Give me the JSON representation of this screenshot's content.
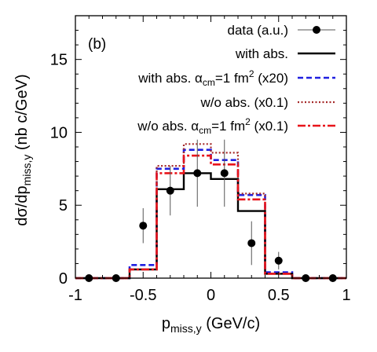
{
  "chart_data": {
    "type": "line",
    "panel_label": "(b)",
    "xlabel_main": "p",
    "xlabel_sub": "miss,y",
    "xlabel_unit": "(GeV/c)",
    "ylabel_main": "dσ/dp",
    "ylabel_sub": "miss,y",
    "ylabel_unit": "(nb c/GeV)",
    "xlim": [
      -1,
      1
    ],
    "ylim": [
      0,
      18
    ],
    "xticks": [
      -1,
      -0.5,
      0,
      0.5,
      1
    ],
    "xtick_labels": [
      "-1",
      "-0.5",
      "0",
      "0.5",
      "1"
    ],
    "yticks": [
      0,
      5,
      10,
      15
    ],
    "ytick_labels": [
      "0",
      "5",
      "10",
      "15"
    ],
    "bin_edges": [
      -1.0,
      -0.8,
      -0.6,
      -0.4,
      -0.2,
      0.0,
      0.2,
      0.4,
      0.6,
      0.8,
      1.0
    ],
    "data": {
      "label": "data (a.u.)",
      "x": [
        -0.9,
        -0.7,
        -0.5,
        -0.3,
        -0.1,
        0.1,
        0.3,
        0.5,
        0.7,
        0.9
      ],
      "y": [
        0,
        0,
        3.6,
        6.0,
        7.2,
        7.2,
        2.4,
        1.2,
        0,
        0
      ],
      "yerr": [
        0,
        0,
        1.2,
        1.7,
        2.3,
        2.3,
        1.5,
        0.6,
        0,
        0
      ],
      "color": "#000000"
    },
    "series": [
      {
        "name": "with abs.",
        "values": [
          0,
          0,
          0.6,
          6.1,
          7.2,
          6.8,
          4.6,
          0.3,
          0,
          0
        ],
        "color": "#000000",
        "dash": "solid"
      },
      {
        "name": "with abs. α_cm=1 fm^2 (x20)",
        "values": [
          0,
          0,
          0.9,
          7.5,
          8.8,
          8.1,
          5.7,
          0.4,
          0,
          0
        ],
        "color": "#1f1fe0",
        "dash": "dashed"
      },
      {
        "name": "w/o abs. (x0.1)",
        "values": [
          0,
          0,
          0.6,
          7.7,
          9.2,
          8.6,
          5.8,
          0.3,
          0,
          0
        ],
        "color": "#a52a2a",
        "dash": "dotted"
      },
      {
        "name": "w/o abs. α_cm=1 fm^2 (x0.1)",
        "values": [
          0,
          0,
          0.6,
          7.2,
          8.4,
          7.8,
          5.4,
          0.3,
          0,
          0
        ],
        "color": "#e8141a",
        "dash": "dashdot"
      }
    ],
    "legend": [
      {
        "pre": "data (a.u.)",
        "alpha": "",
        "post": "",
        "sup": "",
        "tail": ""
      },
      {
        "pre": "with abs.",
        "alpha": "",
        "post": "",
        "sup": "",
        "tail": ""
      },
      {
        "pre": "with abs. ",
        "alpha": "α",
        "post": "cm",
        "sup": "2",
        "tail": "=1 fm",
        "end": " (x20)"
      },
      {
        "pre": "w/o abs. (x0.1)",
        "alpha": "",
        "post": "",
        "sup": "",
        "tail": ""
      },
      {
        "pre": "w/o abs. ",
        "alpha": "α",
        "post": "cm",
        "sup": "2",
        "tail": "=1 fm",
        "end": " (x0.1)"
      }
    ],
    "legend_position": "top-right",
    "grid": false
  }
}
